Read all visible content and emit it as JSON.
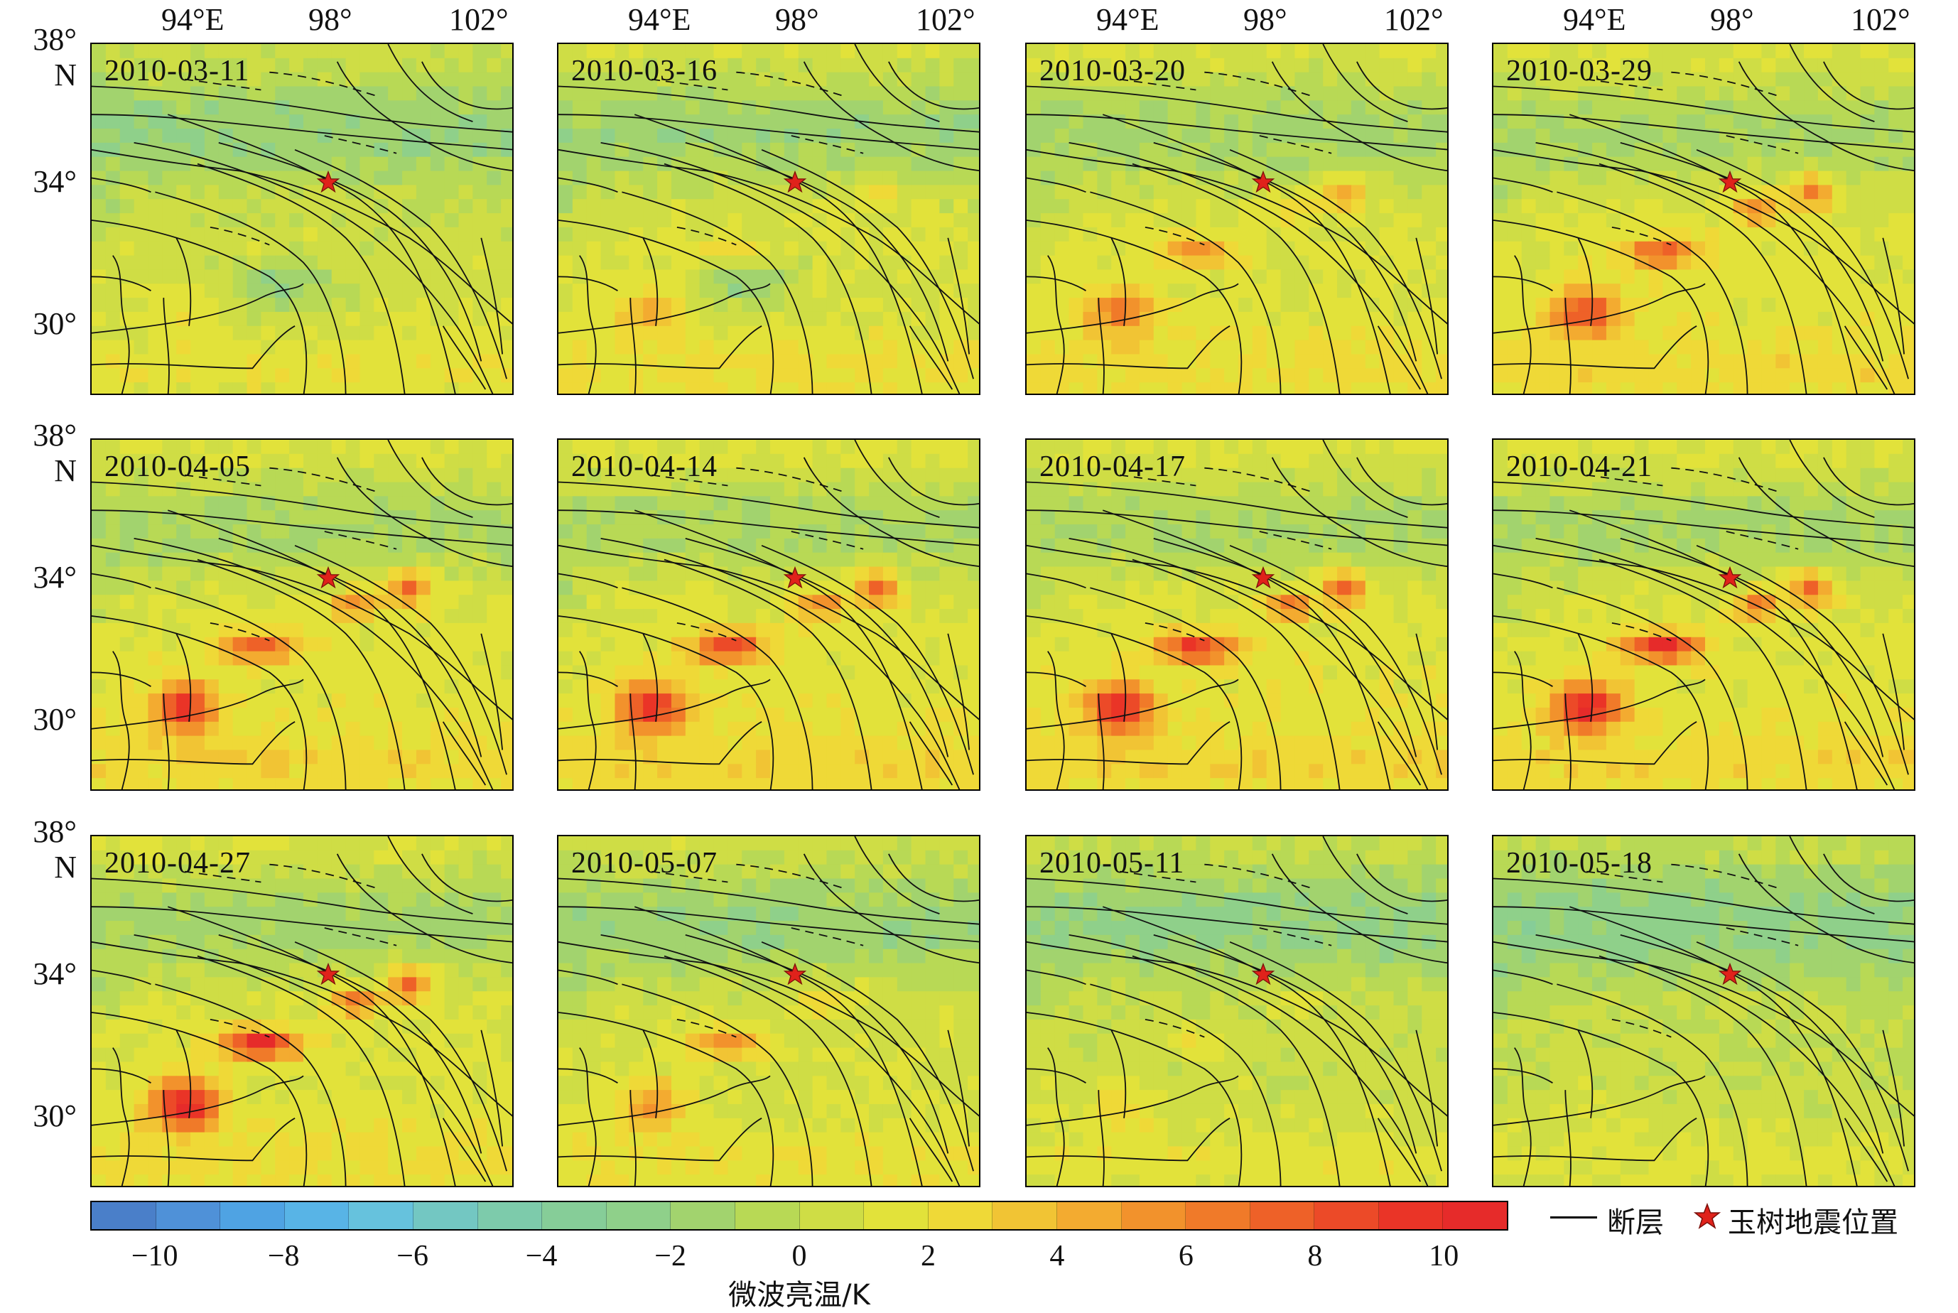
{
  "top_longitude_labels": [
    "94°E",
    "98°",
    "102°"
  ],
  "left_latitude_labels": [
    "38°",
    "N",
    "34°",
    "30°"
  ],
  "panels": [
    {
      "date": "2010-03-11"
    },
    {
      "date": "2010-03-16"
    },
    {
      "date": "2010-03-20"
    },
    {
      "date": "2010-03-29"
    },
    {
      "date": "2010-04-05"
    },
    {
      "date": "2010-04-14"
    },
    {
      "date": "2010-04-17"
    },
    {
      "date": "2010-04-21"
    },
    {
      "date": "2010-04-27"
    },
    {
      "date": "2010-05-07"
    },
    {
      "date": "2010-05-11"
    },
    {
      "date": "2010-05-18"
    }
  ],
  "colorbar": {
    "title": "微波亮温/K",
    "tick_labels": [
      "−10",
      "−8",
      "−6",
      "−4",
      "−2",
      "0",
      "2",
      "4",
      "6",
      "8",
      "10"
    ],
    "tick_values": [
      -10,
      -8,
      -6,
      -4,
      -2,
      0,
      2,
      4,
      6,
      8,
      10
    ],
    "range": [
      -11,
      11
    ],
    "colors": [
      "#4a7fc9",
      "#4f91d8",
      "#4fa3e3",
      "#58b4e6",
      "#66c2dd",
      "#73c7c2",
      "#7dcbab",
      "#86cd98",
      "#8fd08a",
      "#a2d36e",
      "#b8d955",
      "#cfdd45",
      "#e2e23a",
      "#efd937",
      "#f1c434",
      "#f3ab30",
      "#f2922c",
      "#f07a29",
      "#ee6128",
      "#ec4a28",
      "#ea3427",
      "#e62b2a"
    ]
  },
  "legend": {
    "fault_label": "断层",
    "epicenter_label": "玉树地震位置"
  },
  "colors": {
    "star_fill": "#e0221b",
    "star_stroke": "#7a0f0a",
    "fault_line": "#111111"
  }
}
